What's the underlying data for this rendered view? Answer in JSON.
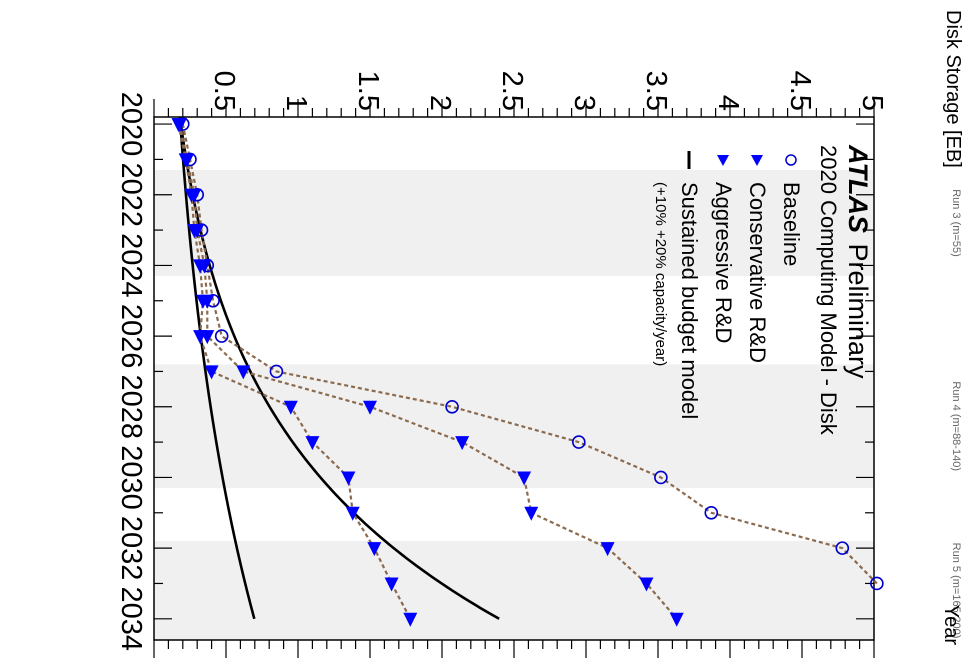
{
  "chart_data": {
    "type": "scatter",
    "title": "ATLAS Preliminary",
    "title_bold": "ATLAS",
    "title_rest": "Preliminary",
    "subtitle": "2020 Computing Model - Disk",
    "xlabel": "Year",
    "ylabel": "Disk Storage [EB]",
    "xlim": [
      2019.8,
      2034.6
    ],
    "ylim": [
      0,
      5
    ],
    "x_ticks": [
      "2020",
      "2022",
      "2024",
      "2026",
      "2028",
      "2030",
      "2032",
      "2034"
    ],
    "y_ticks": [
      "0.5",
      "1",
      "1.5",
      "2",
      "2.5",
      "3",
      "3.5",
      "4",
      "4.5",
      "5"
    ],
    "runs": [
      {
        "label": "Run 3 (m=55)",
        "start": 2021.3,
        "end": 2024.3
      },
      {
        "label": "Run 4 (m=88-140)",
        "start": 2026.8,
        "end": 2030.3
      },
      {
        "label": "Run 5 (m=165-200)",
        "start": 2031.8,
        "end": 2034.6
      }
    ],
    "series": [
      {
        "name": "Baseline",
        "marker": "open-circle",
        "color": "#0000cc",
        "x": [
          2020,
          2021,
          2022,
          2023,
          2024,
          2025,
          2026,
          2027,
          2028,
          2029,
          2030,
          2031,
          2032,
          2033
        ],
        "y": [
          0.2,
          0.25,
          0.3,
          0.33,
          0.37,
          0.41,
          0.47,
          0.85,
          2.07,
          2.95,
          3.52,
          3.87,
          4.78,
          5.02
        ]
      },
      {
        "name": "Conservative R&D",
        "marker": "triangle",
        "color": "#0000ff",
        "x": [
          2020,
          2021,
          2022,
          2023,
          2024,
          2025,
          2026,
          2027,
          2028,
          2029,
          2030,
          2031,
          2032,
          2033,
          2034
        ],
        "y": [
          0.18,
          0.23,
          0.28,
          0.3,
          0.35,
          0.37,
          0.37,
          0.62,
          1.5,
          2.14,
          2.57,
          2.62,
          3.15,
          3.42,
          3.63
        ]
      },
      {
        "name": "Aggressive R&D",
        "marker": "triangle",
        "color": "#0000ff",
        "x": [
          2020,
          2021,
          2022,
          2023,
          2024,
          2025,
          2026,
          2027,
          2028,
          2029,
          2030,
          2031,
          2032,
          2033,
          2034
        ],
        "y": [
          0.17,
          0.22,
          0.26,
          0.28,
          0.32,
          0.34,
          0.32,
          0.4,
          0.95,
          1.1,
          1.35,
          1.38,
          1.53,
          1.65,
          1.78
        ]
      },
      {
        "name": "Sustained budget model",
        "marker": "line",
        "color": "#000000",
        "note": "(+10% +20% capacity/year)",
        "bands": [
          {
            "start_year": 2019.8,
            "start_value": 0.18,
            "growth": 0.1
          },
          {
            "start_year": 2019.8,
            "start_value": 0.18,
            "growth": 0.2
          }
        ]
      }
    ],
    "dashed_color": "#8b6a4e",
    "legend_position": "top-left"
  }
}
